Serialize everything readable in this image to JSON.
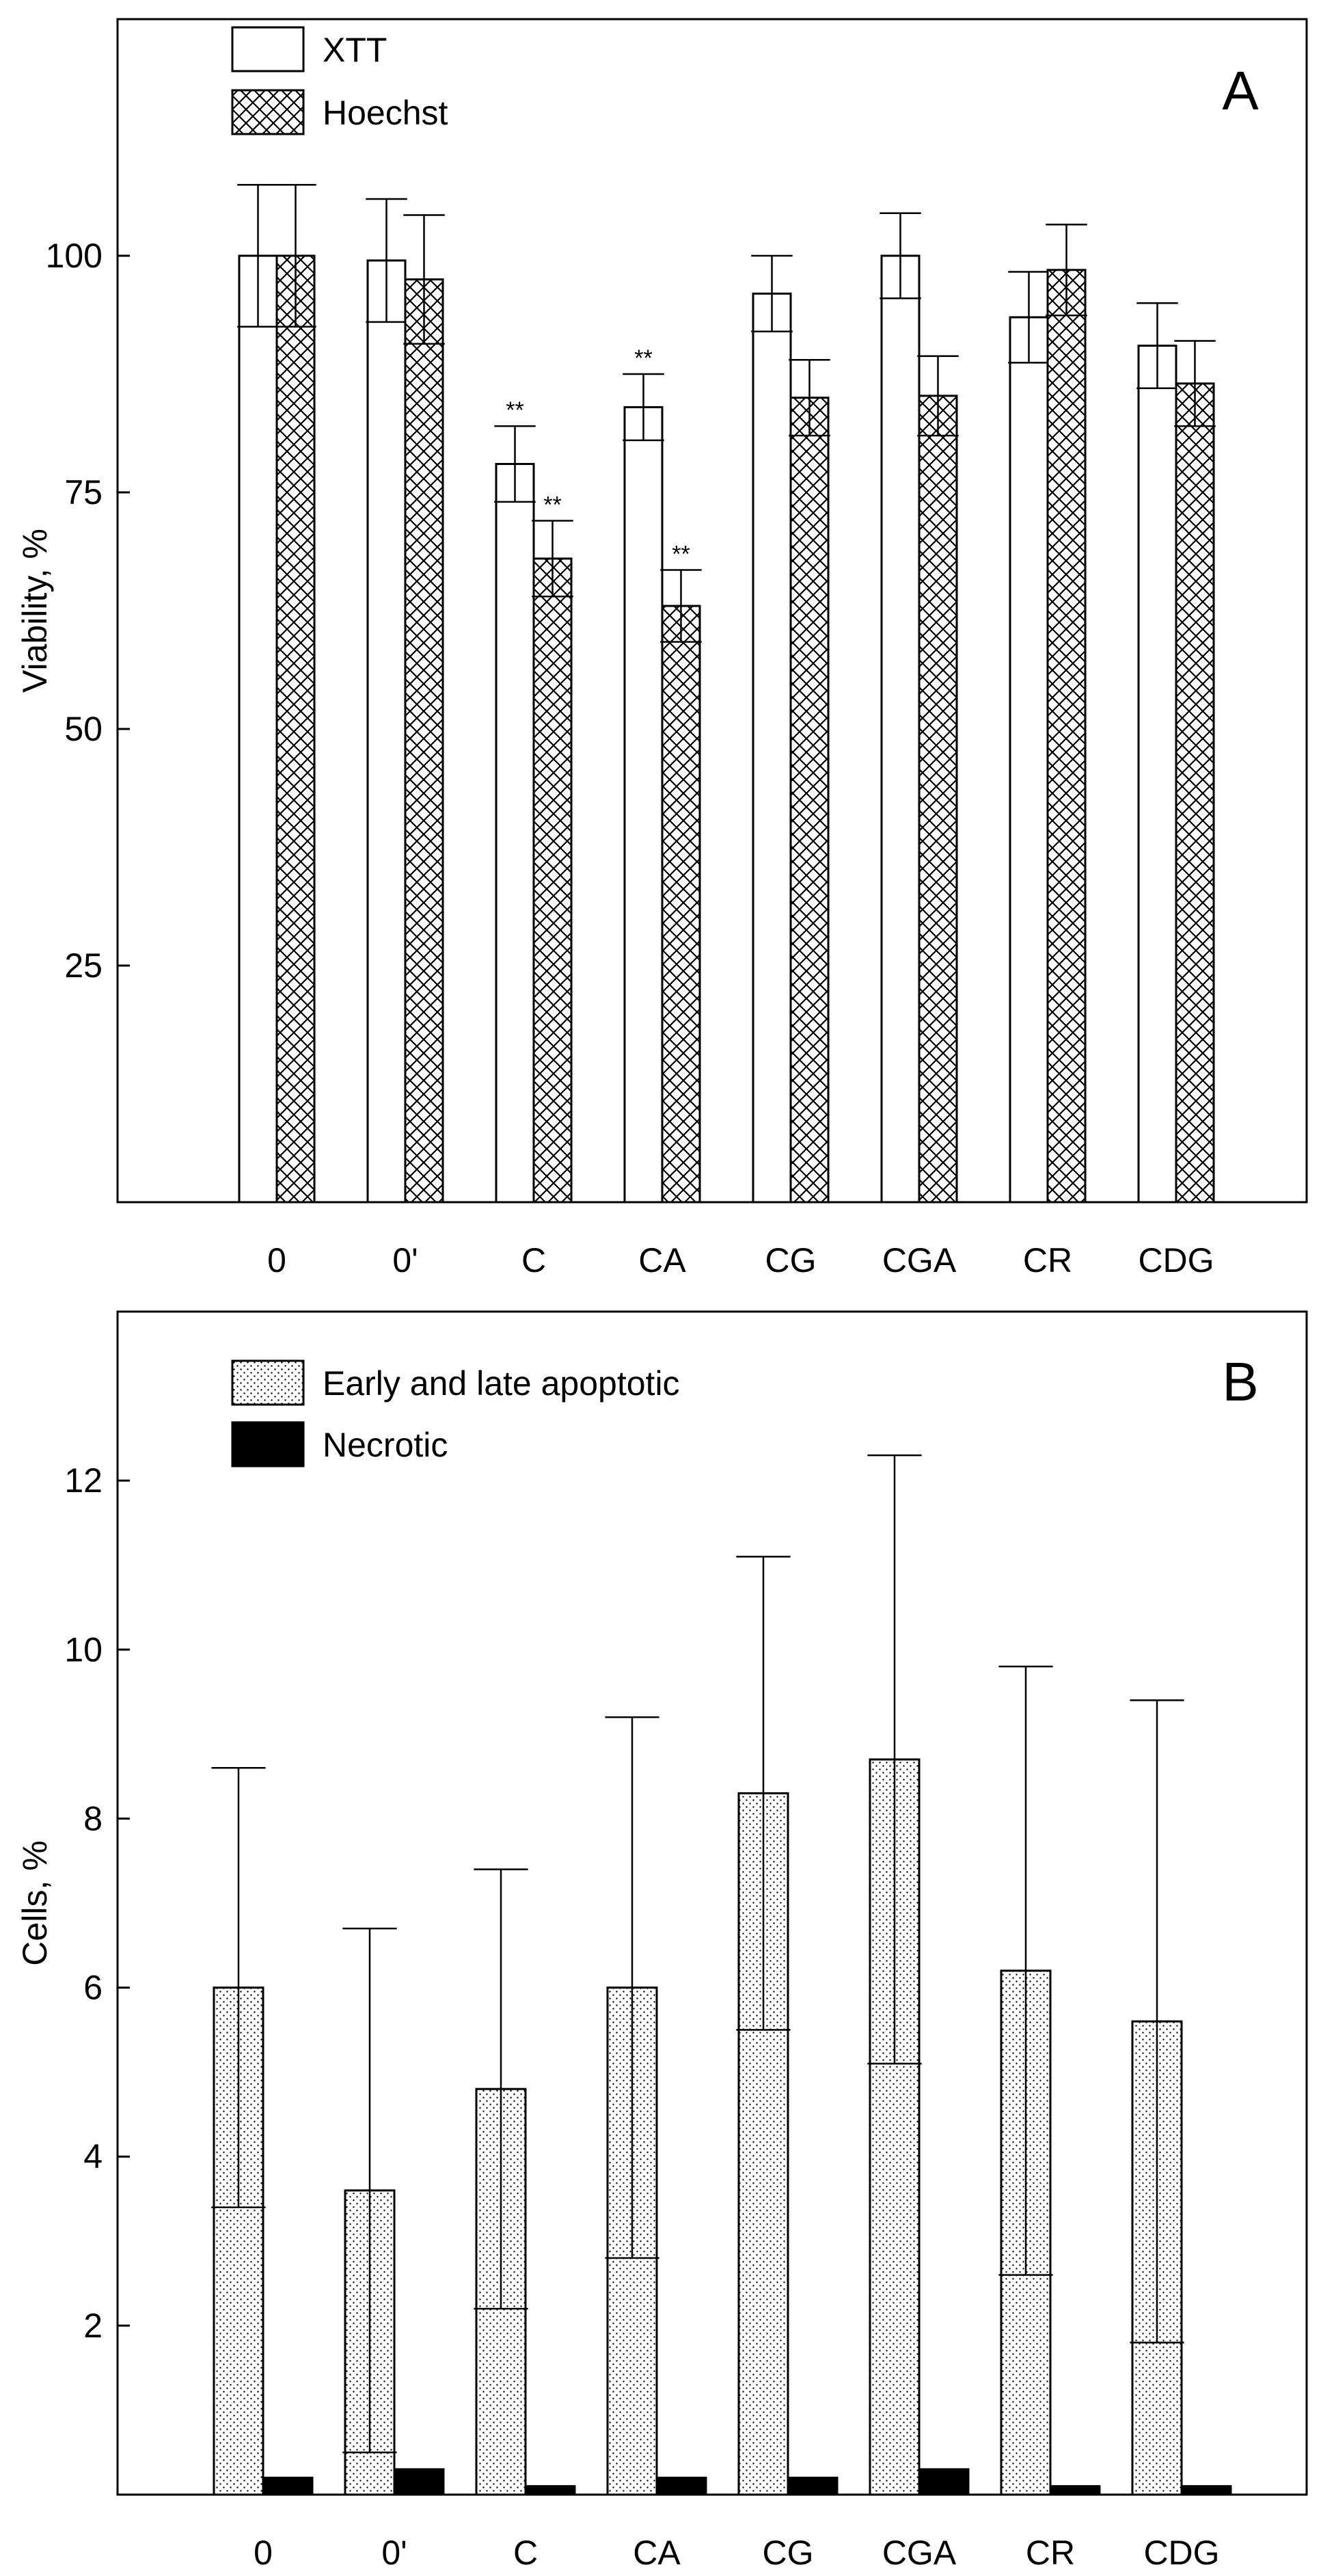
{
  "chart_data": [
    {
      "panel": "A",
      "type": "bar",
      "title": "",
      "xlabel": "",
      "ylabel": "Viability, %",
      "ylim": [
        0,
        125
      ],
      "yticks": [
        25,
        50,
        75,
        100
      ],
      "categories": [
        "0",
        "0'",
        "C",
        "CA",
        "CG",
        "CGA",
        "CR",
        "CDG"
      ],
      "series": [
        {
          "name": "XTT",
          "fill": "white",
          "values": [
            100,
            99.5,
            78,
            84,
            96,
            100,
            93.5,
            90.5
          ],
          "errors": [
            7.5,
            6.5,
            4,
            3.5,
            4,
            4.5,
            4.8,
            4.5
          ],
          "sig": [
            "",
            "",
            "**",
            "**",
            "",
            "",
            "",
            ""
          ]
        },
        {
          "name": "Hoechst",
          "fill": "crosshatch",
          "values": [
            100,
            97.5,
            68,
            63,
            85,
            85.2,
            98.5,
            86.5
          ],
          "errors": [
            7.5,
            6.8,
            4,
            3.8,
            4,
            4.2,
            4.8,
            4.5
          ],
          "sig": [
            "",
            "",
            "**",
            "**",
            "",
            "",
            "",
            ""
          ]
        }
      ],
      "grid": false,
      "legend": "top-left"
    },
    {
      "panel": "B",
      "type": "bar",
      "title": "",
      "xlabel": "",
      "ylabel": "Cells, %",
      "ylim": [
        0,
        14
      ],
      "yticks": [
        2,
        4,
        6,
        8,
        10,
        12
      ],
      "categories": [
        "0",
        "0'",
        "C",
        "CA",
        "CG",
        "CGA",
        "CR",
        "CDG"
      ],
      "series": [
        {
          "name": "Early and late apoptotic",
          "fill": "dotted",
          "values": [
            6,
            3.6,
            4.8,
            6,
            8.3,
            8.7,
            6.2,
            5.6
          ],
          "errors": [
            2.6,
            3.1,
            2.6,
            3.2,
            2.8,
            3.6,
            3.6,
            3.8
          ],
          "sig": [
            "",
            "",
            "",
            "",
            "",
            "",
            "",
            ""
          ]
        },
        {
          "name": "Necrotic",
          "fill": "black",
          "values": [
            0.2,
            0.3,
            0.1,
            0.2,
            0.2,
            0.3,
            0.1,
            0.1
          ],
          "errors": [
            0,
            0,
            0,
            0,
            0,
            0,
            0,
            0
          ],
          "sig": [
            "",
            "",
            "",
            "",
            "",
            "",
            "",
            ""
          ]
        }
      ],
      "grid": false,
      "legend": "top-left"
    }
  ]
}
